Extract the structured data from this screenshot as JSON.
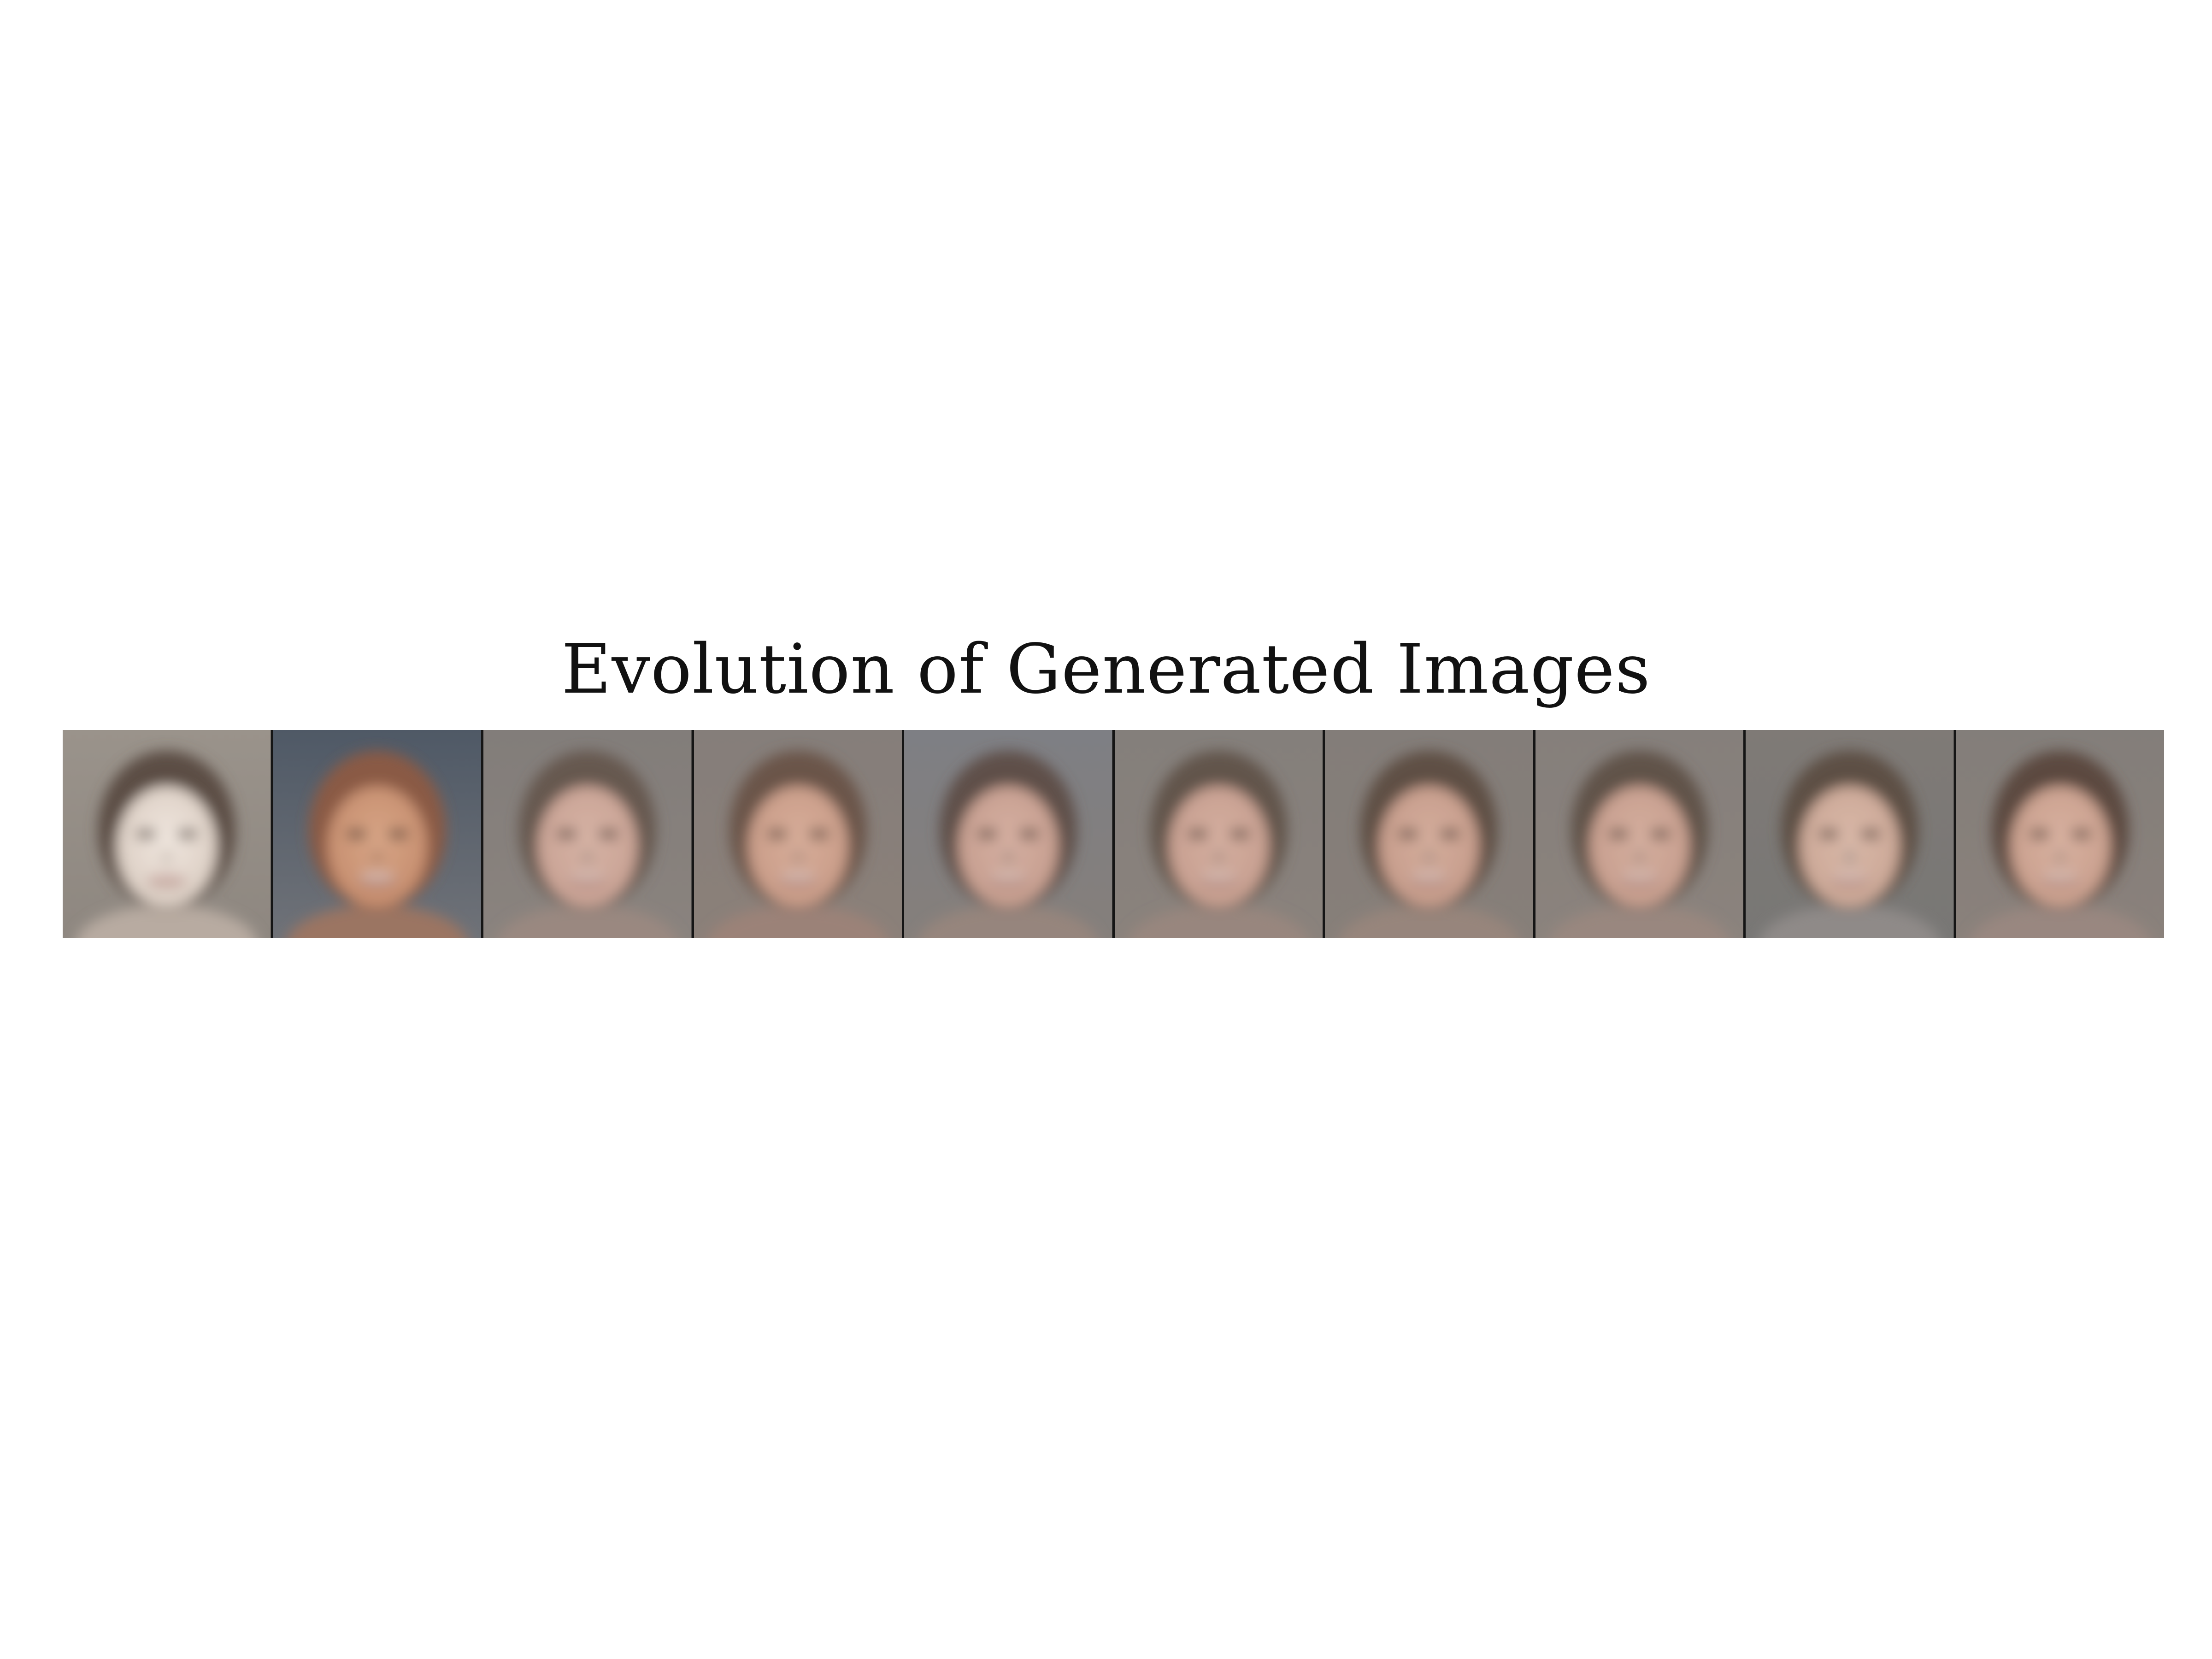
{
  "figure": {
    "title": "Evolution of Generated Images"
  },
  "frames": [
    {
      "bg": "#8e8780",
      "bgTop": "#9a938b",
      "face": "#d9cbc0",
      "hair": "#5b4d44",
      "glow": "#efe6de",
      "tint": "#b8aba1"
    },
    {
      "bg": "#6f7278",
      "bgTop": "#4f5966",
      "face": "#c48b6c",
      "hair": "#8a5a44",
      "glow": "#d7a586",
      "tint": "#9b7462"
    },
    {
      "bg": "#8a837e",
      "bgTop": "#827d7a",
      "face": "#c7a092",
      "hair": "#66584f",
      "glow": "#d6b3a5",
      "tint": "#9a8880"
    },
    {
      "bg": "#8b8079",
      "bgTop": "#857e7a",
      "face": "#c79a86",
      "hair": "#6a5548",
      "glow": "#d7ad99",
      "tint": "#9b8278"
    },
    {
      "bg": "#857f7b",
      "bgTop": "#7e7f84",
      "face": "#c49c8d",
      "hair": "#5f5049",
      "glow": "#d5afa1",
      "tint": "#96857d"
    },
    {
      "bg": "#8a827c",
      "bgTop": "#847f7b",
      "face": "#c59d8e",
      "hair": "#62544b",
      "glow": "#d4ae9f",
      "tint": "#98867e"
    },
    {
      "bg": "#877f79",
      "bgTop": "#837d79",
      "face": "#c49a89",
      "hair": "#5f4f45",
      "glow": "#d4ad9c",
      "tint": "#97857b"
    },
    {
      "bg": "#8b837d",
      "bgTop": "#857f7b",
      "face": "#c59c8c",
      "hair": "#61524a",
      "glow": "#d4ae9e",
      "tint": "#99877f"
    },
    {
      "bg": "#787775",
      "bgTop": "#7f7a76",
      "face": "#c9a594",
      "hair": "#5d5045",
      "glow": "#d9b8a8",
      "tint": "#8f8a88"
    },
    {
      "bg": "#8a817b",
      "bgTop": "#837e7a",
      "face": "#c79d8b",
      "hair": "#5b4a40",
      "glow": "#d8b1a0",
      "tint": "#998780"
    }
  ]
}
